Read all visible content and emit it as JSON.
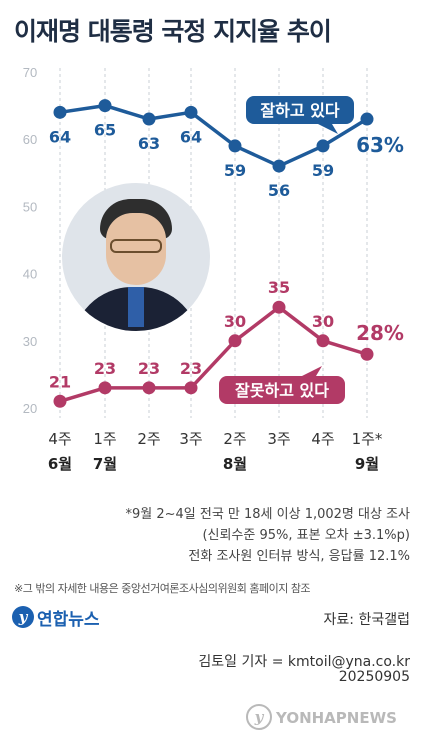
{
  "title": "이재명 대통령 국정 지지율 추이",
  "chart_data": {
    "type": "line",
    "y_ticks": [
      20,
      30,
      40,
      50,
      60,
      70
    ],
    "ylim": [
      19,
      71
    ],
    "x_labels": [
      {
        "week": "4주",
        "month": "6월"
      },
      {
        "week": "1주",
        "month": "7월"
      },
      {
        "week": "2주",
        "month": ""
      },
      {
        "week": "3주",
        "month": ""
      },
      {
        "week": "2주",
        "month": "8월"
      },
      {
        "week": "3주",
        "month": ""
      },
      {
        "week": "4주",
        "month": ""
      },
      {
        "week": "1주*",
        "month": "9월"
      }
    ],
    "series": [
      {
        "name": "잘하고 있다",
        "color": "#1e5b9a",
        "values": [
          64,
          65,
          63,
          64,
          59,
          56,
          59,
          63
        ],
        "last_label": "63%"
      },
      {
        "name": "잘못하고 있다",
        "color": "#b23a66",
        "values": [
          21,
          23,
          23,
          23,
          30,
          35,
          30,
          28
        ],
        "last_label": "28%"
      }
    ],
    "grid": true,
    "grid_color": "#c9cfd6"
  },
  "notes": {
    "line1": "*9월 2~4일 전국 만 18세 이상 1,002명 대상 조사",
    "line2": "(신뢰수준 95%, 표본 오차 ±3.1%p)",
    "line3": "전화 조사원 인터뷰 방식, 응답률 12.1%"
  },
  "footnote": "※그 밖의 자세한 내용은 중앙선거여론조사심의위원회 홈페이지 참조",
  "source": "자료: 한국갤럽",
  "logo": {
    "icon": "yonhap-logo-icon",
    "text": "연합뉴스"
  },
  "reporter": "김토일 기자 = kmtoil@yna.co.kr",
  "date": "20250905",
  "watermark": {
    "icon": "yonhap-watermark-icon",
    "text": "YONHAPNEWS"
  }
}
